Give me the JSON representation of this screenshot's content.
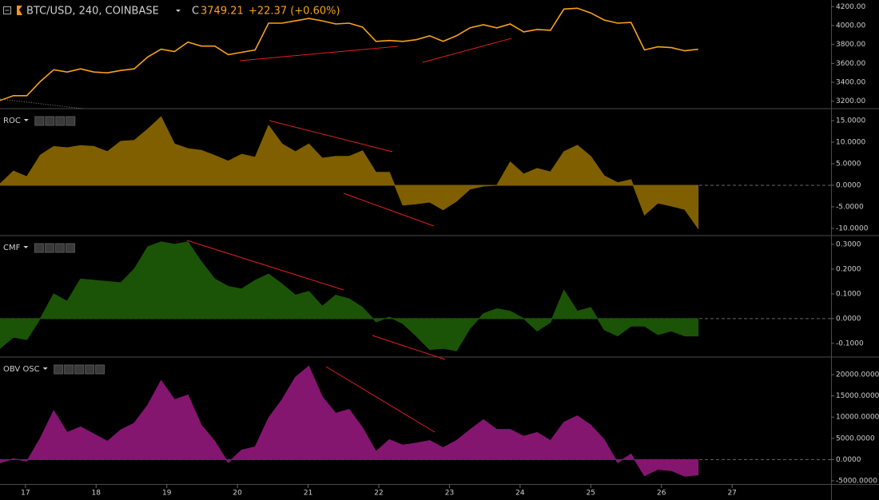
{
  "chart_data": {
    "type": "multi-pane",
    "symbol": "BTC/USD, 240, COINBASE",
    "close_label": "C",
    "close": 3749.21,
    "change": "+22.37 (+0.60%)",
    "x": [
      16.64,
      16.83,
      17.02,
      17.21,
      17.4,
      17.59,
      17.78,
      17.97,
      18.16,
      18.35,
      18.54,
      18.73,
      18.92,
      19.11,
      19.3,
      19.49,
      19.68,
      19.87,
      20.06,
      20.25,
      20.44,
      20.63,
      20.82,
      21.01,
      21.2,
      21.39,
      21.58,
      21.77,
      21.96,
      22.15,
      22.34,
      22.53,
      22.72,
      22.91,
      23.1,
      23.29,
      23.48,
      23.67,
      23.86,
      24.05,
      24.24,
      24.43,
      24.62,
      24.81,
      25.0,
      25.19,
      25.38,
      25.57,
      25.76,
      25.95,
      26.14,
      26.33,
      26.52
    ],
    "xlim": [
      16.64,
      28.4
    ],
    "xticks": [
      17,
      18,
      19,
      20,
      21,
      22,
      23,
      24,
      25,
      26,
      27
    ],
    "panes": [
      {
        "type": "line",
        "color": "#f7a21b",
        "ylim": [
          3130,
          4270
        ],
        "yticks": [
          {
            "value": 3200,
            "label": "3200.00"
          },
          {
            "value": 3400,
            "label": "3400.00"
          },
          {
            "value": 3600,
            "label": "3600.00"
          },
          {
            "value": 3800,
            "label": "3800.00"
          },
          {
            "value": 4000,
            "label": "4000.00"
          },
          {
            "value": 4200,
            "label": "4200.00"
          }
        ],
        "values": [
          3208,
          3258,
          3258,
          3408,
          3533,
          3508,
          3542,
          3508,
          3500,
          3525,
          3542,
          3667,
          3750,
          3725,
          3825,
          3783,
          3783,
          3692,
          3717,
          3742,
          4025,
          4025,
          4050,
          4075,
          4050,
          4017,
          4025,
          3983,
          3833,
          3842,
          3833,
          3850,
          3892,
          3833,
          3892,
          3975,
          4008,
          3975,
          4017,
          3933,
          3958,
          3950,
          4175,
          4183,
          4133,
          4058,
          4025,
          4033,
          3742,
          3775,
          3767,
          3733,
          3749
        ]
      },
      {
        "type": "area",
        "name": "ROC",
        "color": "#7f5f00",
        "ylim": [
          -11.5,
          17.6
        ],
        "yticks": [
          {
            "value": -10,
            "label": "-10.0000"
          },
          {
            "value": -5,
            "label": "-5.0000"
          },
          {
            "value": 0,
            "label": "0.0000"
          },
          {
            "value": 5,
            "label": "5.0000"
          },
          {
            "value": 10,
            "label": "10.0000"
          },
          {
            "value": 15,
            "label": "15.0000"
          }
        ],
        "values": [
          0.3,
          3.3,
          2,
          7,
          9,
          8.7,
          9.2,
          9,
          7.8,
          10.2,
          10.4,
          13,
          15.9,
          9.6,
          8.5,
          8.1,
          6.9,
          5.6,
          7.2,
          6.5,
          13.9,
          9.6,
          7.8,
          9.6,
          6.3,
          6.7,
          6.7,
          8,
          3,
          3,
          -4.6,
          -4.3,
          -3.9,
          -5.7,
          -3.7,
          -0.9,
          -0.2,
          0,
          5.4,
          2.6,
          3.9,
          3.1,
          7.8,
          9.3,
          6.7,
          2.2,
          0.6,
          1.3,
          -6.9,
          -4.1,
          -4.8,
          -5.6,
          -10
        ]
      },
      {
        "type": "area",
        "name": "CMF",
        "color": "#1b5407",
        "ylim": [
          -0.152,
          0.332
        ],
        "yticks": [
          {
            "value": -0.1,
            "label": "-0.1000"
          },
          {
            "value": 0,
            "label": "0.0000"
          },
          {
            "value": 0.1,
            "label": "0.1000"
          },
          {
            "value": 0.2,
            "label": "0.2000"
          },
          {
            "value": 0.3,
            "label": "0.3000"
          }
        ],
        "values": [
          -0.12,
          -0.075,
          -0.085,
          0,
          0.1,
          0.07,
          0.16,
          0.155,
          0.15,
          0.145,
          0.2,
          0.29,
          0.31,
          0.3,
          0.31,
          0.23,
          0.16,
          0.13,
          0.12,
          0.155,
          0.18,
          0.14,
          0.095,
          0.11,
          0.05,
          0.095,
          0.08,
          0.045,
          -0.013,
          0.006,
          -0.02,
          -0.07,
          -0.125,
          -0.12,
          -0.13,
          -0.04,
          0.02,
          0.04,
          0.03,
          0,
          -0.05,
          -0.015,
          0.115,
          0.03,
          0.045,
          -0.045,
          -0.07,
          -0.03,
          -0.03,
          -0.065,
          -0.05,
          -0.07,
          -0.07
        ]
      },
      {
        "type": "area",
        "name": "OBV OSC",
        "color": "#84166f",
        "ylim": [
          -5750,
          23950
        ],
        "yticks": [
          {
            "value": -5000,
            "label": "-5000.0000"
          },
          {
            "value": 0,
            "label": "0.0000"
          },
          {
            "value": 5000,
            "label": "5000.0000"
          },
          {
            "value": 10000,
            "label": "10000.0000"
          },
          {
            "value": 15000,
            "label": "15000.0000"
          },
          {
            "value": 20000,
            "label": "20000.0000"
          }
        ],
        "values": [
          -750,
          200,
          -400,
          5000,
          11500,
          6400,
          7700,
          6000,
          4300,
          7000,
          8600,
          12800,
          18600,
          14100,
          15200,
          8100,
          4300,
          -750,
          2250,
          3000,
          9800,
          14100,
          19400,
          22000,
          14800,
          10900,
          11800,
          7500,
          1900,
          4700,
          3400,
          3900,
          4500,
          2800,
          4500,
          7000,
          9400,
          7100,
          7100,
          5500,
          6400,
          4500,
          8800,
          10300,
          8100,
          4700,
          -750,
          1300,
          -3800,
          -2300,
          -2600,
          -3900,
          -3600
        ]
      }
    ]
  }
}
